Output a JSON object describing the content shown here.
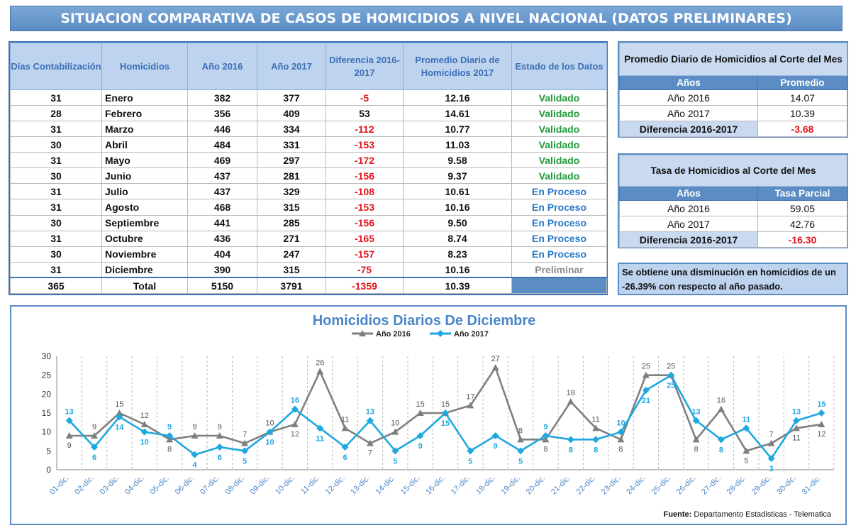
{
  "header": {
    "title_main": "SITUACION COMPARATIVA DE CASOS DE HOMICIDIOS A NIVEL NACIONAL",
    "title_note": "(DATOS PRELIMINARES)"
  },
  "main_table": {
    "headers": [
      "Días Contabilización",
      "Homicidios",
      "Año 2016",
      "Año 2017",
      "Diferencia 2016-2017",
      "Promedio Diario de Homicidios 2017",
      "Estado de los Datos"
    ],
    "rows": [
      {
        "dias": "31",
        "mes": "Enero",
        "y2016": "382",
        "y2017": "377",
        "dif": "-5",
        "prom": "12.16",
        "estado": "Validado"
      },
      {
        "dias": "28",
        "mes": "Febrero",
        "y2016": "356",
        "y2017": "409",
        "dif": "53",
        "prom": "14.61",
        "estado": "Validado"
      },
      {
        "dias": "31",
        "mes": "Marzo",
        "y2016": "446",
        "y2017": "334",
        "dif": "-112",
        "prom": "10.77",
        "estado": "Validado"
      },
      {
        "dias": "30",
        "mes": "Abril",
        "y2016": "484",
        "y2017": "331",
        "dif": "-153",
        "prom": "11.03",
        "estado": "Validado"
      },
      {
        "dias": "31",
        "mes": "Mayo",
        "y2016": "469",
        "y2017": "297",
        "dif": "-172",
        "prom": "9.58",
        "estado": "Validado"
      },
      {
        "dias": "30",
        "mes": "Junio",
        "y2016": "437",
        "y2017": "281",
        "dif": "-156",
        "prom": "9.37",
        "estado": "Validado"
      },
      {
        "dias": "31",
        "mes": "Julio",
        "y2016": "437",
        "y2017": "329",
        "dif": "-108",
        "prom": "10.61",
        "estado": "En Proceso"
      },
      {
        "dias": "31",
        "mes": "Agosto",
        "y2016": "468",
        "y2017": "315",
        "dif": "-153",
        "prom": "10.16",
        "estado": "En Proceso"
      },
      {
        "dias": "30",
        "mes": "Septiembre",
        "y2016": "441",
        "y2017": "285",
        "dif": "-156",
        "prom": "9.50",
        "estado": "En Proceso"
      },
      {
        "dias": "31",
        "mes": "Octubre",
        "y2016": "436",
        "y2017": "271",
        "dif": "-165",
        "prom": "8.74",
        "estado": "En Proceso"
      },
      {
        "dias": "30",
        "mes": "Noviembre",
        "y2016": "404",
        "y2017": "247",
        "dif": "-157",
        "prom": "8.23",
        "estado": "En Proceso"
      },
      {
        "dias": "31",
        "mes": "Diciembre",
        "y2016": "390",
        "y2017": "315",
        "dif": "-75",
        "prom": "10.16",
        "estado": "Preliminar"
      }
    ],
    "total": {
      "dias": "365",
      "label": "Total",
      "y2016": "5150",
      "y2017": "3791",
      "dif": "-1359",
      "prom": "10.39"
    }
  },
  "promedio_table": {
    "caption": "Promedio Diario de Homicidios al Corte del Mes",
    "col_years": "Años",
    "col_value": "Promedio",
    "rows": [
      {
        "label": "Año 2016",
        "value": "14.07"
      },
      {
        "label": "Año 2017",
        "value": "10.39"
      }
    ],
    "diff_label": "Diferencia 2016-2017",
    "diff_value": "-3.68"
  },
  "tasa_table": {
    "caption": "Tasa de Homicidios al Corte del Mes",
    "col_years": "Años",
    "col_value": "Tasa Parcial",
    "rows": [
      {
        "label": "Año 2016",
        "value": "59.05"
      },
      {
        "label": "Año 2017",
        "value": "42.76"
      }
    ],
    "diff_label": "Diferencia 2016-2017",
    "diff_value": "-16.30"
  },
  "note": {
    "text": "Se obtiene una disminución en homicidios de un -26.39% con respecto al año pasado."
  },
  "source": {
    "label": "Fuente:",
    "text": "Departamento Estadisticas - Telematica"
  },
  "colors": {
    "header_blue": "#5b8cc4",
    "series_2016": "#7f7f7f",
    "series_2017": "#1fa8e0",
    "negative_red": "#e0161d",
    "validado_green": "#1f9b3a",
    "proceso_blue": "#2579c9"
  },
  "chart_data": {
    "type": "line",
    "title": "Homicidios Diarios De Diciembre",
    "xlabel": "",
    "ylabel": "",
    "ylim": [
      0,
      30
    ],
    "yticks": [
      0,
      5,
      10,
      15,
      20,
      25,
      30
    ],
    "grid": "vertical-dashed",
    "legend_position": "top",
    "categories": [
      "01-dic.",
      "02-dic.",
      "03-dic.",
      "04-dic.",
      "05-dic.",
      "06-dic.",
      "07-dic.",
      "08-dic.",
      "09-dic.",
      "10-dic.",
      "11-dic.",
      "12-dic.",
      "13-dic.",
      "14-dic.",
      "15-dic.",
      "16-dic.",
      "17-dic.",
      "18-dic.",
      "19-dic.",
      "20-dic.",
      "21-dic.",
      "22-dic.",
      "23-dic.",
      "24-dic.",
      "25-dic.",
      "26-dic.",
      "27-dic.",
      "28-dic.",
      "29-dic.",
      "30-dic.",
      "31-dic."
    ],
    "series": [
      {
        "name": "Año 2016",
        "marker": "triangle",
        "values": [
          9,
          9,
          15,
          12,
          8,
          9,
          9,
          7,
          10,
          12,
          26,
          11,
          7,
          10,
          15,
          15,
          17,
          27,
          8,
          8,
          18,
          11,
          8,
          25,
          25,
          8,
          16,
          5,
          7,
          11,
          12
        ]
      },
      {
        "name": "Año 2017",
        "marker": "diamond",
        "values": [
          13,
          6,
          14,
          10,
          9,
          4,
          6,
          5,
          10,
          16,
          11,
          6,
          13,
          5,
          9,
          15,
          5,
          9,
          5,
          9,
          8,
          8,
          10,
          21,
          25,
          13,
          8,
          11,
          3,
          13,
          15
        ]
      }
    ]
  }
}
